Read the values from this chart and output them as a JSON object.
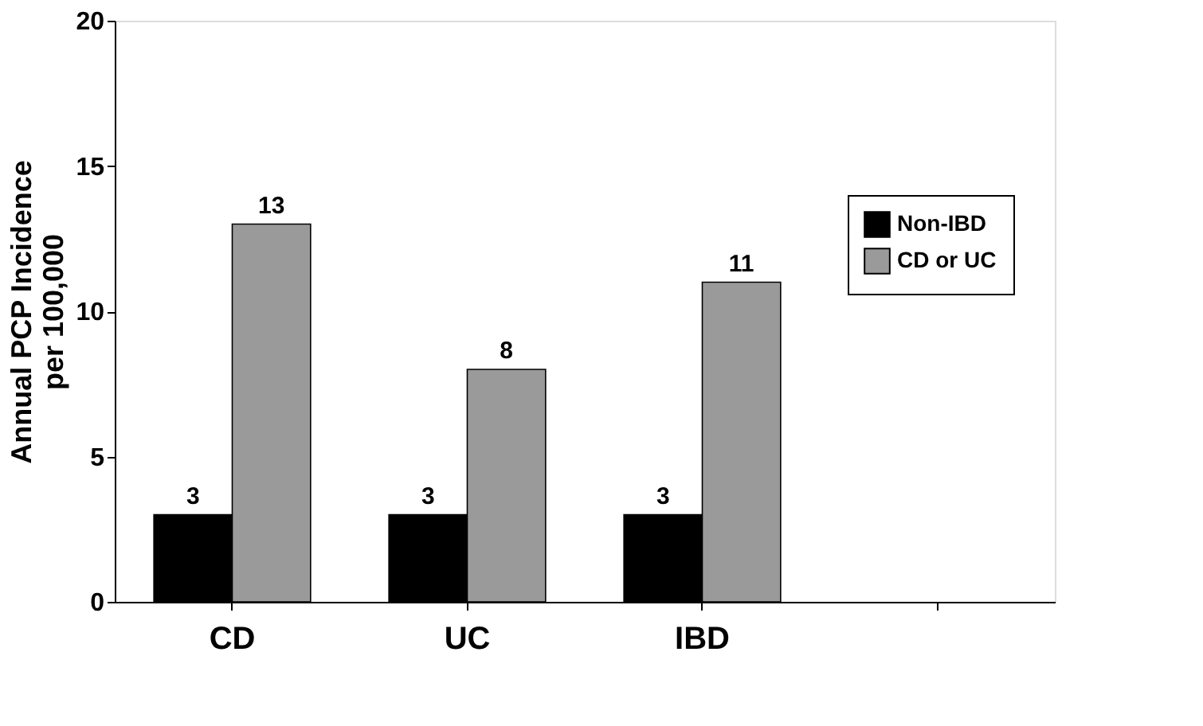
{
  "chart_data": {
    "type": "bar",
    "ylabel": "Annual PCP Incidence per 100,000",
    "categories": [
      "CD",
      "UC",
      "IBD",
      null
    ],
    "series": [
      {
        "name": "Non-IBD",
        "color": "#000000",
        "values": [
          3,
          3,
          3,
          null
        ]
      },
      {
        "name": "CD or UC",
        "color": "#9a9a9a",
        "values": [
          13,
          8,
          11,
          null
        ]
      }
    ],
    "ylim": [
      0,
      20
    ],
    "yticks": [
      0,
      5,
      10,
      15,
      20
    ],
    "grid": false,
    "legend": "right",
    "data_labels": true
  }
}
